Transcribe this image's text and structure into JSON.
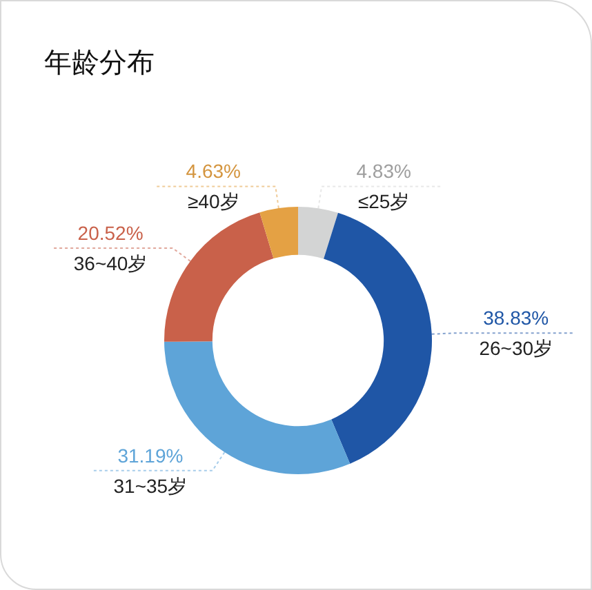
{
  "chart_data": {
    "type": "donut",
    "title": "年龄分布",
    "categories": [
      "≤25岁",
      "26~30岁",
      "31~35岁",
      "36~40岁",
      "≥40岁"
    ],
    "values": [
      4.83,
      38.83,
      31.19,
      20.52,
      4.63
    ],
    "colors": [
      "#d3d4d4",
      "#1f56a6",
      "#5ea4d8",
      "#c9614a",
      "#e4a144"
    ],
    "value_labels": [
      "4.83%",
      "38.83%",
      "31.19%",
      "20.52%",
      "4.63%"
    ],
    "legend": false
  }
}
